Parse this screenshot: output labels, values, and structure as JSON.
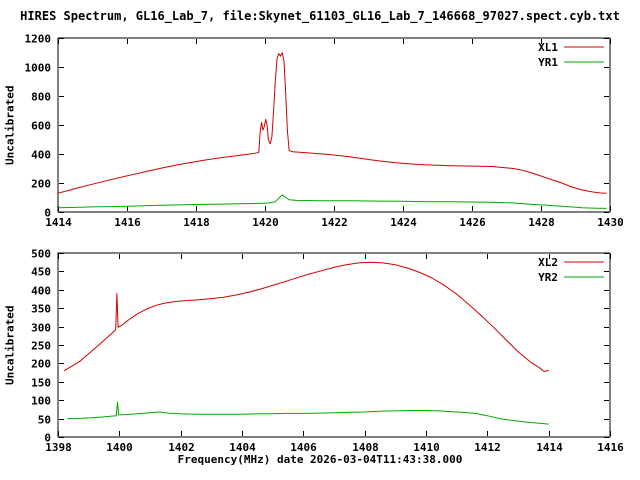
{
  "title": "HIRES Spectrum, GL16_Lab_7, file:Skynet_61103_GL16_Lab_7_146668_97027.spect.cyb.txt",
  "xlabel": "Frequency(MHz) date 2026-03-04T11:43:38.000",
  "colors": {
    "background": "#ffffff",
    "axis": "#000000",
    "series_red": "#d00000",
    "series_green": "#00aa00"
  },
  "chart_data": [
    {
      "type": "line",
      "title": "",
      "ylabel": "Uncalibrated",
      "xlabel": "",
      "xlim": [
        1414,
        1430
      ],
      "ylim": [
        0,
        1200
      ],
      "xticks": [
        1414,
        1416,
        1418,
        1420,
        1422,
        1424,
        1426,
        1428,
        1430
      ],
      "yticks": [
        0,
        200,
        400,
        600,
        800,
        1000,
        1200
      ],
      "grid": false,
      "legend_position": "top-right",
      "series": [
        {
          "name": "XL1",
          "color": "#d00000",
          "points": [
            [
              1414.0,
              130
            ],
            [
              1414.3,
              148
            ],
            [
              1414.6,
              168
            ],
            [
              1415.0,
              192
            ],
            [
              1415.4,
              215
            ],
            [
              1415.8,
              238
            ],
            [
              1416.2,
              260
            ],
            [
              1416.6,
              282
            ],
            [
              1417.0,
              303
            ],
            [
              1417.4,
              322
            ],
            [
              1417.8,
              340
            ],
            [
              1418.2,
              356
            ],
            [
              1418.6,
              370
            ],
            [
              1419.0,
              383
            ],
            [
              1419.4,
              395
            ],
            [
              1419.7,
              405
            ],
            [
              1419.82,
              412
            ],
            [
              1419.86,
              560
            ],
            [
              1419.9,
              618
            ],
            [
              1419.94,
              565
            ],
            [
              1419.98,
              590
            ],
            [
              1420.02,
              638
            ],
            [
              1420.06,
              600
            ],
            [
              1420.1,
              495
            ],
            [
              1420.15,
              470
            ],
            [
              1420.2,
              520
            ],
            [
              1420.25,
              700
            ],
            [
              1420.3,
              905
            ],
            [
              1420.35,
              1060
            ],
            [
              1420.4,
              1092
            ],
            [
              1420.45,
              1075
            ],
            [
              1420.5,
              1098
            ],
            [
              1420.55,
              1040
            ],
            [
              1420.6,
              820
            ],
            [
              1420.65,
              560
            ],
            [
              1420.7,
              425
            ],
            [
              1420.8,
              415
            ],
            [
              1421.0,
              412
            ],
            [
              1421.4,
              405
            ],
            [
              1421.8,
              397
            ],
            [
              1422.2,
              388
            ],
            [
              1422.6,
              376
            ],
            [
              1423.0,
              362
            ],
            [
              1423.4,
              350
            ],
            [
              1423.8,
              340
            ],
            [
              1424.2,
              332
            ],
            [
              1424.6,
              326
            ],
            [
              1425.0,
              322
            ],
            [
              1425.4,
              319
            ],
            [
              1425.8,
              317
            ],
            [
              1426.2,
              315
            ],
            [
              1426.6,
              314
            ],
            [
              1426.8,
              308
            ],
            [
              1427.0,
              304
            ],
            [
              1427.2,
              300
            ],
            [
              1427.4,
              292
            ],
            [
              1427.7,
              272
            ],
            [
              1428.0,
              248
            ],
            [
              1428.3,
              224
            ],
            [
              1428.6,
              200
            ],
            [
              1428.9,
              172
            ],
            [
              1429.2,
              152
            ],
            [
              1429.5,
              138
            ],
            [
              1429.7,
              132
            ],
            [
              1429.9,
              130
            ]
          ]
        },
        {
          "name": "YR1",
          "color": "#00aa00",
          "points": [
            [
              1414.0,
              30
            ],
            [
              1414.5,
              32
            ],
            [
              1415.0,
              35
            ],
            [
              1415.5,
              37
            ],
            [
              1416.0,
              40
            ],
            [
              1416.5,
              43
            ],
            [
              1417.0,
              46
            ],
            [
              1417.5,
              49
            ],
            [
              1418.0,
              52
            ],
            [
              1418.5,
              54
            ],
            [
              1419.0,
              56
            ],
            [
              1419.5,
              58
            ],
            [
              1419.9,
              60
            ],
            [
              1420.1,
              62
            ],
            [
              1420.3,
              70
            ],
            [
              1420.4,
              95
            ],
            [
              1420.5,
              118
            ],
            [
              1420.6,
              100
            ],
            [
              1420.7,
              85
            ],
            [
              1420.9,
              80
            ],
            [
              1421.2,
              79
            ],
            [
              1421.6,
              78
            ],
            [
              1422.0,
              78
            ],
            [
              1422.5,
              77
            ],
            [
              1423.0,
              76
            ],
            [
              1423.5,
              75
            ],
            [
              1424.0,
              74
            ],
            [
              1424.5,
              72
            ],
            [
              1425.0,
              71
            ],
            [
              1425.5,
              70
            ],
            [
              1426.0,
              69
            ],
            [
              1426.5,
              67
            ],
            [
              1427.0,
              64
            ],
            [
              1427.3,
              60
            ],
            [
              1427.6,
              55
            ],
            [
              1428.0,
              49
            ],
            [
              1428.4,
              43
            ],
            [
              1428.8,
              36
            ],
            [
              1429.2,
              30
            ],
            [
              1429.6,
              26
            ],
            [
              1429.9,
              25
            ]
          ]
        }
      ]
    },
    {
      "type": "line",
      "title": "",
      "ylabel": "Uncalibrated",
      "xlabel": "Frequency(MHz) date 2026-03-04T11:43:38.000",
      "xlim": [
        1398,
        1416
      ],
      "ylim": [
        0,
        500
      ],
      "xticks": [
        1398,
        1400,
        1402,
        1404,
        1406,
        1408,
        1410,
        1412,
        1414,
        1416
      ],
      "yticks": [
        0,
        50,
        100,
        150,
        200,
        250,
        300,
        350,
        400,
        450,
        500
      ],
      "grid": false,
      "legend_position": "top-right",
      "series": [
        {
          "name": "XL2",
          "color": "#d00000",
          "points": [
            [
              1398.2,
              180
            ],
            [
              1398.4,
              190
            ],
            [
              1398.7,
              205
            ],
            [
              1399.0,
              226
            ],
            [
              1399.3,
              248
            ],
            [
              1399.6,
              270
            ],
            [
              1399.8,
              285
            ],
            [
              1399.88,
              292
            ],
            [
              1399.92,
              390
            ],
            [
              1399.96,
              298
            ],
            [
              1400.1,
              305
            ],
            [
              1400.3,
              318
            ],
            [
              1400.6,
              335
            ],
            [
              1400.9,
              348
            ],
            [
              1401.2,
              358
            ],
            [
              1401.5,
              364
            ],
            [
              1401.8,
              368
            ],
            [
              1402.2,
              371
            ],
            [
              1402.6,
              373
            ],
            [
              1403.0,
              376
            ],
            [
              1403.4,
              380
            ],
            [
              1403.8,
              386
            ],
            [
              1404.2,
              393
            ],
            [
              1404.6,
              402
            ],
            [
              1405.0,
              412
            ],
            [
              1405.4,
              422
            ],
            [
              1405.8,
              433
            ],
            [
              1406.2,
              443
            ],
            [
              1406.6,
              452
            ],
            [
              1407.0,
              461
            ],
            [
              1407.4,
              468
            ],
            [
              1407.8,
              473
            ],
            [
              1408.2,
              475
            ],
            [
              1408.6,
              473
            ],
            [
              1409.0,
              468
            ],
            [
              1409.4,
              459
            ],
            [
              1409.8,
              447
            ],
            [
              1410.2,
              432
            ],
            [
              1410.6,
              412
            ],
            [
              1411.0,
              388
            ],
            [
              1411.4,
              360
            ],
            [
              1411.8,
              330
            ],
            [
              1412.2,
              298
            ],
            [
              1412.6,
              265
            ],
            [
              1413.0,
              232
            ],
            [
              1413.4,
              204
            ],
            [
              1413.7,
              188
            ],
            [
              1413.85,
              178
            ],
            [
              1414.0,
              181
            ]
          ]
        },
        {
          "name": "YR2",
          "color": "#00aa00",
          "points": [
            [
              1398.3,
              50
            ],
            [
              1398.6,
              50
            ],
            [
              1399.0,
              52
            ],
            [
              1399.4,
              54
            ],
            [
              1399.8,
              57
            ],
            [
              1399.9,
              58
            ],
            [
              1399.94,
              95
            ],
            [
              1399.98,
              60
            ],
            [
              1400.2,
              61
            ],
            [
              1400.6,
              63
            ],
            [
              1401.0,
              66
            ],
            [
              1401.3,
              68
            ],
            [
              1401.6,
              65
            ],
            [
              1402.0,
              63
            ],
            [
              1402.5,
              62
            ],
            [
              1403.0,
              62
            ],
            [
              1403.5,
              62
            ],
            [
              1404.0,
              62
            ],
            [
              1404.5,
              63
            ],
            [
              1405.0,
              63
            ],
            [
              1405.5,
              64
            ],
            [
              1406.0,
              64
            ],
            [
              1406.5,
              65
            ],
            [
              1407.0,
              66
            ],
            [
              1407.5,
              67
            ],
            [
              1408.0,
              68
            ],
            [
              1408.5,
              70
            ],
            [
              1409.0,
              71
            ],
            [
              1409.5,
              72
            ],
            [
              1410.0,
              72
            ],
            [
              1410.4,
              71
            ],
            [
              1410.8,
              69
            ],
            [
              1411.2,
              67
            ],
            [
              1411.6,
              64
            ],
            [
              1412.0,
              58
            ],
            [
              1412.4,
              50
            ],
            [
              1412.8,
              45
            ],
            [
              1413.2,
              41
            ],
            [
              1413.6,
              38
            ],
            [
              1414.0,
              35
            ]
          ]
        }
      ]
    }
  ]
}
